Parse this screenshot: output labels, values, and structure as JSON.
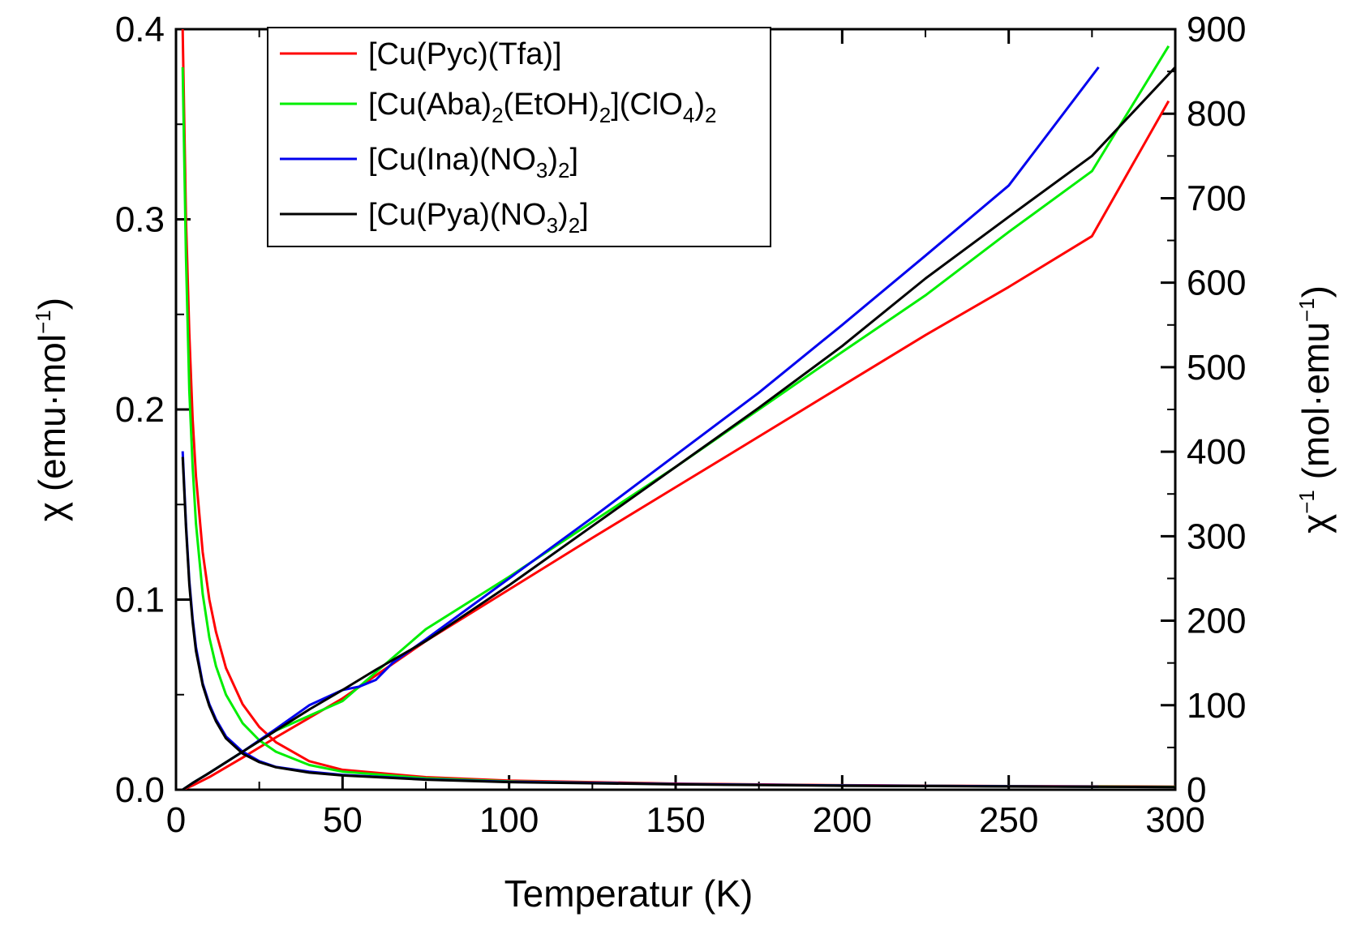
{
  "chart_data": {
    "type": "line",
    "title": "",
    "xlabel": "Temperatur (K)",
    "ylabel_left": {
      "symbol": "χ",
      "unit_text": "(emu·mol",
      "superscript": "−1",
      "close": ")"
    },
    "ylabel_right": {
      "symbol": "χ",
      "symbol_superscript": "−1",
      "unit_text": "(mol·emu",
      "superscript": "−1",
      "close": ")"
    },
    "xlim": [
      0,
      300
    ],
    "ylim_left": [
      0,
      0.4
    ],
    "ylim_right": [
      0,
      900
    ],
    "x_ticks": [
      "0",
      "50",
      "100",
      "150",
      "200",
      "250",
      "300"
    ],
    "y_left_ticks": [
      "0.0",
      "0.1",
      "0.2",
      "0.3",
      "0.4"
    ],
    "y_right_ticks": [
      "0",
      "100",
      "200",
      "300",
      "400",
      "500",
      "600",
      "700",
      "800",
      "900"
    ],
    "legend_position": "top-left",
    "series": [
      {
        "name": "[Cu(Pyc)(Tfa)]",
        "legend": [
          {
            "t": "[Cu(Pyc)(Tfa)]"
          }
        ],
        "color": "#ff0000",
        "chi_x": [
          2,
          3,
          4,
          5,
          6,
          8,
          10,
          12,
          15,
          20,
          25,
          30,
          40,
          50,
          75,
          100,
          150,
          200,
          250,
          300
        ],
        "chi_y": [
          0.4,
          0.3,
          0.24,
          0.195,
          0.165,
          0.125,
          0.1,
          0.083,
          0.064,
          0.045,
          0.033,
          0.025,
          0.015,
          0.0105,
          0.0066,
          0.0048,
          0.0032,
          0.0024,
          0.0019,
          0.0016
        ],
        "inv_x": [
          2,
          5,
          10,
          20,
          30,
          50,
          75,
          100,
          125,
          150,
          175,
          200,
          225,
          250,
          275,
          298
        ],
        "inv_y": [
          0,
          5,
          15,
          38,
          62,
          108,
          176,
          237,
          298,
          358,
          418,
          478,
          538,
          595,
          655,
          815
        ]
      },
      {
        "name": "[Cu(Aba)2(EtOH)2](ClO4)2",
        "legend": [
          {
            "t": "[Cu(Aba)"
          },
          {
            "t": "2",
            "sub": true
          },
          {
            "t": "(EtOH)"
          },
          {
            "t": "2",
            "sub": true
          },
          {
            "t": "](ClO"
          },
          {
            "t": "4",
            "sub": true
          },
          {
            "t": ")"
          },
          {
            "t": "2",
            "sub": true
          }
        ],
        "color": "#00ee00",
        "chi_x": [
          2,
          3,
          4,
          5,
          6,
          8,
          10,
          12,
          15,
          20,
          25,
          30,
          40,
          50,
          75,
          100,
          150,
          200,
          250,
          300
        ],
        "chi_y": [
          0.38,
          0.28,
          0.21,
          0.17,
          0.14,
          0.103,
          0.08,
          0.065,
          0.05,
          0.035,
          0.026,
          0.02,
          0.013,
          0.0095,
          0.006,
          0.0044,
          0.003,
          0.0022,
          0.0018,
          0.0015
        ],
        "inv_x": [
          2,
          5,
          10,
          20,
          30,
          50,
          75,
          100,
          125,
          150,
          175,
          200,
          225,
          250,
          275,
          298
        ],
        "inv_y": [
          0,
          8,
          20,
          45,
          70,
          105,
          190,
          252,
          317,
          382,
          450,
          518,
          585,
          660,
          732,
          880
        ]
      },
      {
        "name": "[Cu(Ina)(NO3)2]",
        "legend": [
          {
            "t": "[Cu(Ina)(NO"
          },
          {
            "t": "3",
            "sub": true
          },
          {
            "t": ")"
          },
          {
            "t": "2",
            "sub": true
          },
          {
            "t": "]"
          }
        ],
        "color": "#0000ee",
        "chi_x": [
          2,
          3,
          4,
          5,
          6,
          8,
          10,
          12,
          15,
          20,
          25,
          30,
          40,
          50,
          75,
          100,
          150,
          200,
          250,
          277
        ],
        "chi_y": [
          0.178,
          0.14,
          0.11,
          0.09,
          0.075,
          0.056,
          0.045,
          0.037,
          0.028,
          0.02,
          0.015,
          0.012,
          0.0095,
          0.0078,
          0.0055,
          0.0042,
          0.003,
          0.0022,
          0.0018,
          0.0016
        ],
        "inv_x": [
          2,
          5,
          10,
          20,
          30,
          40,
          50,
          55,
          60,
          65,
          75,
          100,
          125,
          150,
          175,
          200,
          225,
          250,
          277
        ],
        "inv_y": [
          0,
          8,
          20,
          45,
          72,
          100,
          118,
          122,
          130,
          150,
          178,
          250,
          322,
          396,
          470,
          550,
          632,
          715,
          855
        ]
      },
      {
        "name": "[Cu(Pya)(NO3)2]",
        "legend": [
          {
            "t": "[Cu(Pya)(NO"
          },
          {
            "t": "3",
            "sub": true
          },
          {
            "t": ")"
          },
          {
            "t": "2",
            "sub": true
          },
          {
            "t": "]"
          }
        ],
        "color": "#000000",
        "chi_x": [
          2,
          3,
          4,
          5,
          6,
          8,
          10,
          12,
          15,
          20,
          25,
          30,
          40,
          50,
          75,
          100,
          150,
          200,
          250,
          300
        ],
        "chi_y": [
          0.175,
          0.138,
          0.108,
          0.088,
          0.073,
          0.055,
          0.044,
          0.036,
          0.027,
          0.019,
          0.0145,
          0.0118,
          0.009,
          0.0075,
          0.0053,
          0.004,
          0.0028,
          0.0021,
          0.0017,
          0.0014
        ],
        "inv_x": [
          2,
          5,
          10,
          20,
          30,
          40,
          50,
          60,
          75,
          100,
          125,
          150,
          175,
          200,
          225,
          250,
          275,
          300
        ],
        "inv_y": [
          0,
          8,
          20,
          45,
          70,
          95,
          118,
          142,
          176,
          242,
          312,
          382,
          452,
          525,
          605,
          678,
          750,
          855
        ]
      }
    ]
  }
}
